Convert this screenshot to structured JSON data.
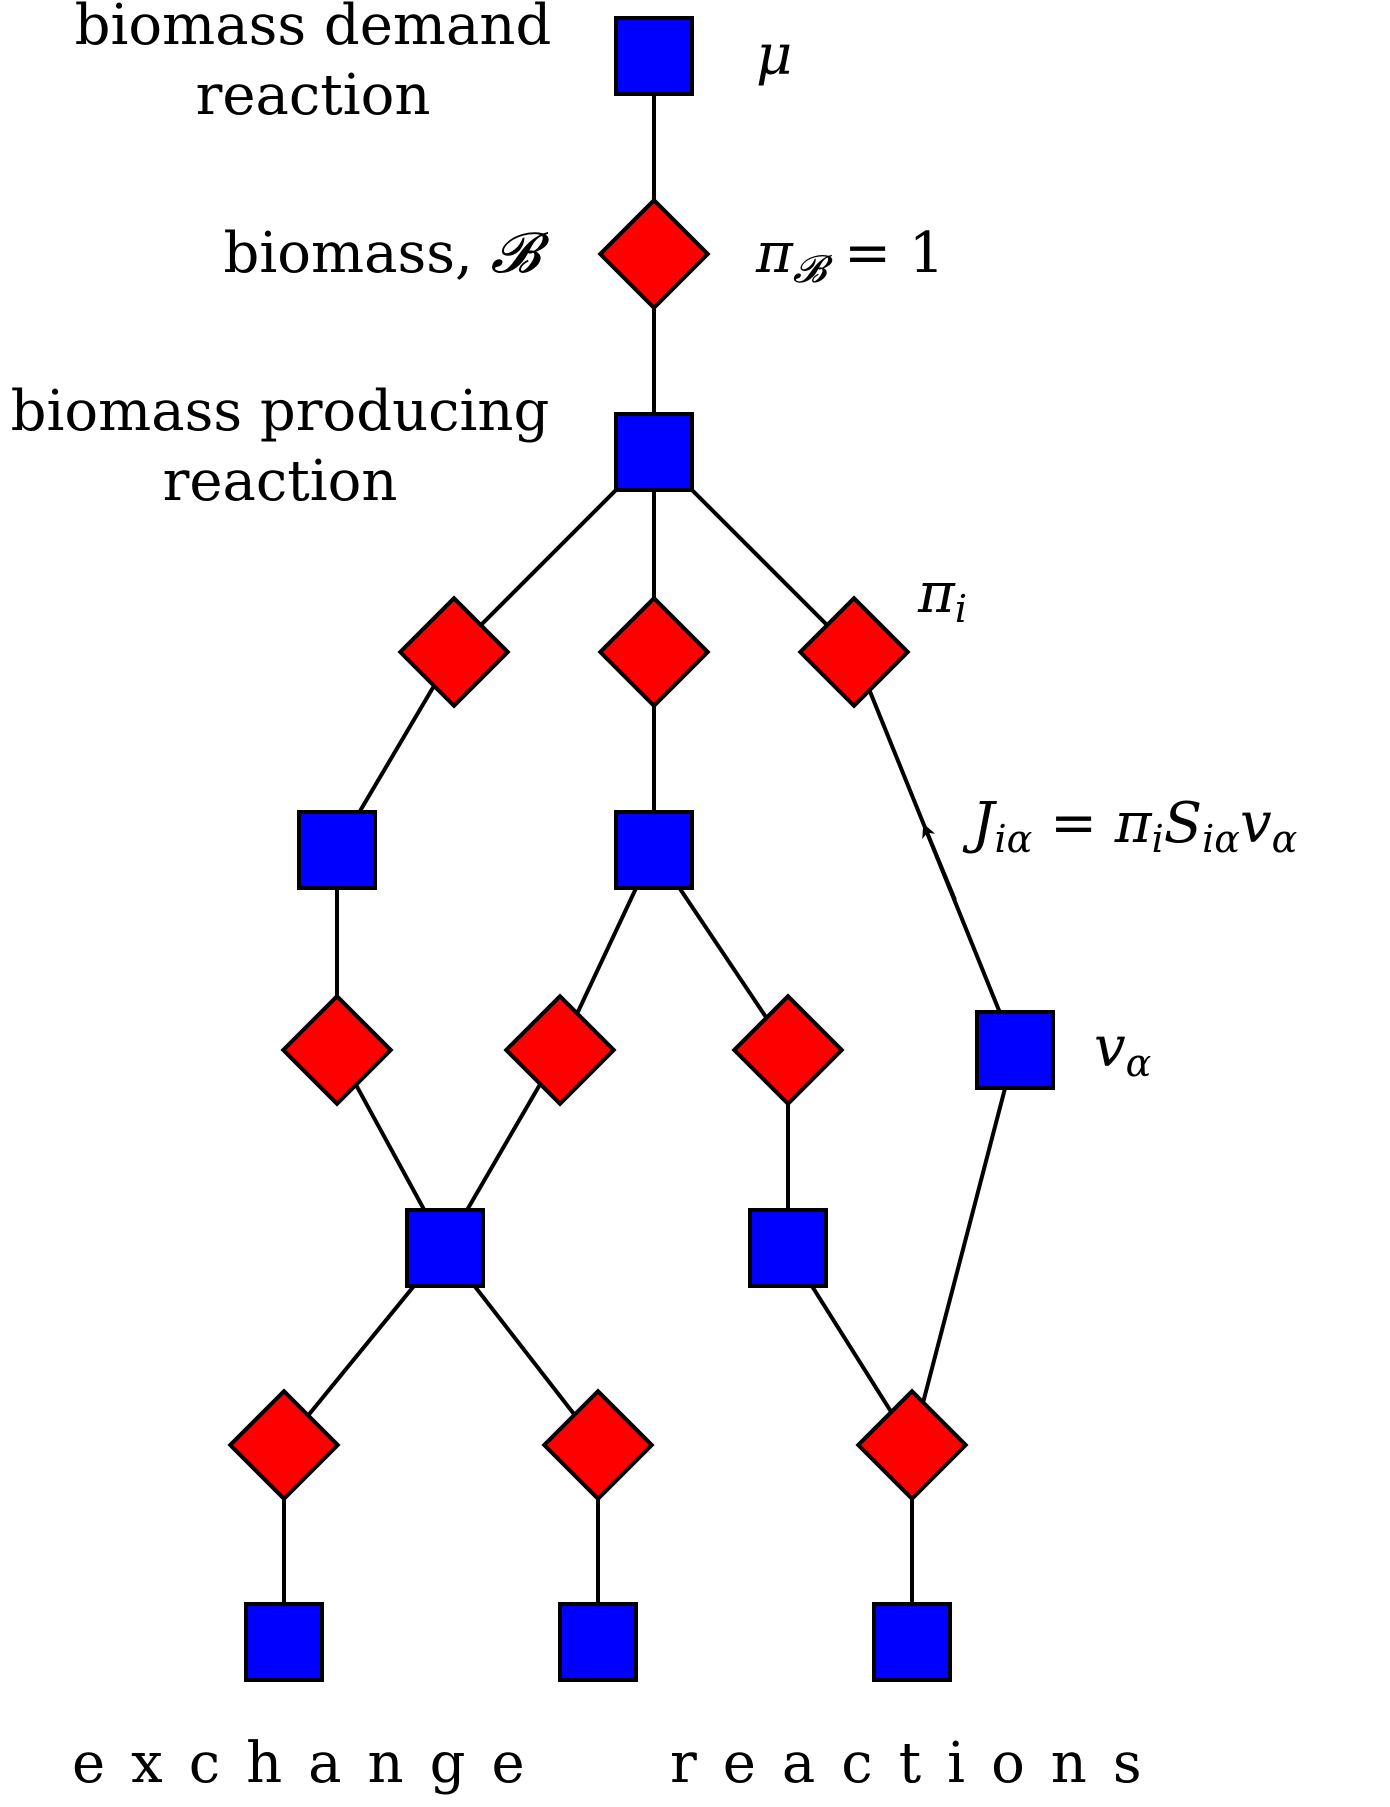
{
  "colors": {
    "reaction": "#0000ff",
    "metabolite": "#ff0000",
    "stroke": "#000000",
    "background": "#ffffff"
  },
  "labels": {
    "biomass_demand_line1": "biomass demand",
    "biomass_demand_line2": "reaction",
    "biomass_text": "biomass, ",
    "biomass_symbol": "𝓑",
    "biomass_producing_line1": "biomass producing",
    "biomass_producing_line2": "reaction",
    "exchange": "exchange",
    "reactions": "reactions"
  },
  "math": {
    "mu": "μ",
    "pi_b_pi": "π",
    "pi_b_sub": "𝓑",
    "pi_b_rest": " = 1",
    "pi_i_pi": "π",
    "pi_i_sub": "i",
    "flux_J": "J",
    "flux_J_sub": "iα",
    "flux_eq": " = π",
    "flux_pi_sub": "i",
    "flux_S": "S",
    "flux_S_sub": "iα",
    "flux_v": "v",
    "flux_v_sub": "α",
    "v_alpha_v": "v",
    "v_alpha_sub": "α"
  }
}
